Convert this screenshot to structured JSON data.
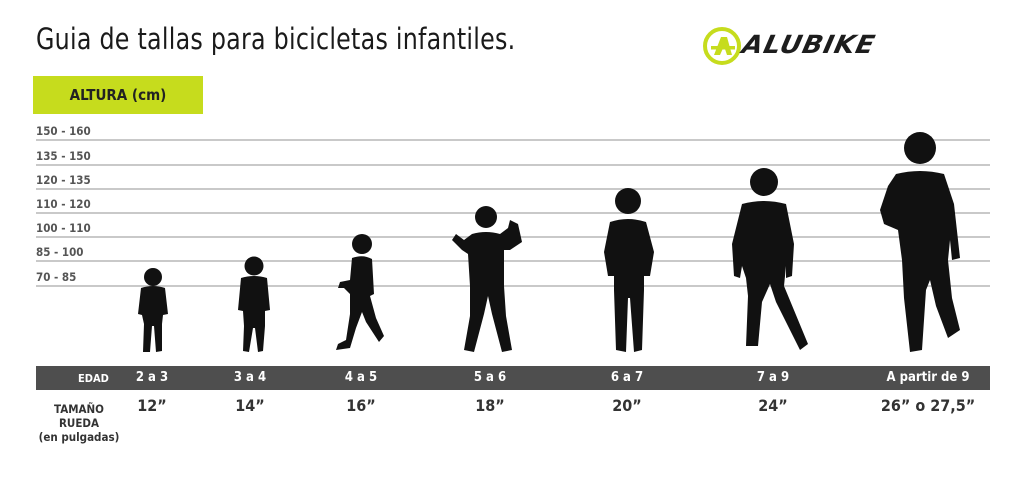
{
  "title": "Guia de tallas para bicicletas infantiles.",
  "brand": {
    "name": "ALUBIKE",
    "accent_color": "#c6dc1d",
    "icon": "alubike-a-logo-icon"
  },
  "height_axis": {
    "label": "ALTURA (cm)",
    "ranges": [
      "150 - 160",
      "135 - 150",
      "120 - 135",
      "110 - 120",
      "100 - 110",
      "85 - 100",
      "70 - 85"
    ]
  },
  "age_row": {
    "label": "EDAD",
    "ages": [
      "2 a 3",
      "3 a 4",
      "4 a 5",
      "5 a 6",
      "6 a 7",
      "7 a 9",
      "A partir de 9"
    ]
  },
  "wheel_row": {
    "label_line1": "TAMAÑO",
    "label_line2": "RUEDA",
    "label_line3": "(en pulgadas)",
    "sizes": [
      "12”",
      "14”",
      "16”",
      "18”",
      "20”",
      "24”",
      "26” o 27,5”"
    ]
  },
  "colors": {
    "silhouette": "#111111",
    "bar": "#4e4e4e",
    "grid": "#c9c9c9"
  }
}
